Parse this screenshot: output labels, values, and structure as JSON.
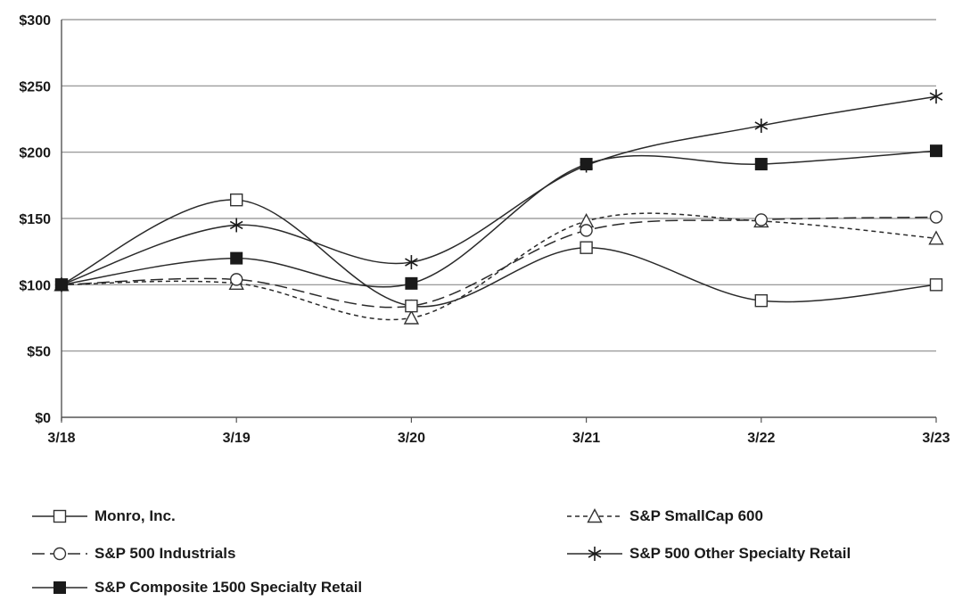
{
  "chart_data": {
    "type": "line",
    "categories": [
      "3/18",
      "3/19",
      "3/20",
      "3/21",
      "3/22",
      "3/23"
    ],
    "y_ticks": [
      "$0",
      "$50",
      "$100",
      "$150",
      "$200",
      "$250",
      "$300"
    ],
    "ylim": [
      0,
      300
    ],
    "grid": true,
    "legend_position": "bottom",
    "series": [
      {
        "name": "Monro, Inc.",
        "values": [
          100,
          164,
          84,
          128,
          88,
          100
        ],
        "marker": "open-square",
        "dash": "solid"
      },
      {
        "name": "S&P SmallCap 600",
        "values": [
          100,
          101,
          75,
          148,
          148,
          135
        ],
        "marker": "open-triangle",
        "dash": "short-dash"
      },
      {
        "name": "S&P 500 Industrials",
        "values": [
          100,
          104,
          84,
          141,
          149,
          151
        ],
        "marker": "open-circle",
        "dash": "long-dash"
      },
      {
        "name": "S&P 500 Other Specialty Retail",
        "values": [
          100,
          145,
          117,
          190,
          220,
          242
        ],
        "marker": "asterisk",
        "dash": "solid"
      },
      {
        "name": "S&P Composite 1500 Specialty Retail",
        "values": [
          100,
          120,
          101,
          191,
          191,
          201
        ],
        "marker": "filled-square",
        "dash": "solid"
      }
    ]
  }
}
